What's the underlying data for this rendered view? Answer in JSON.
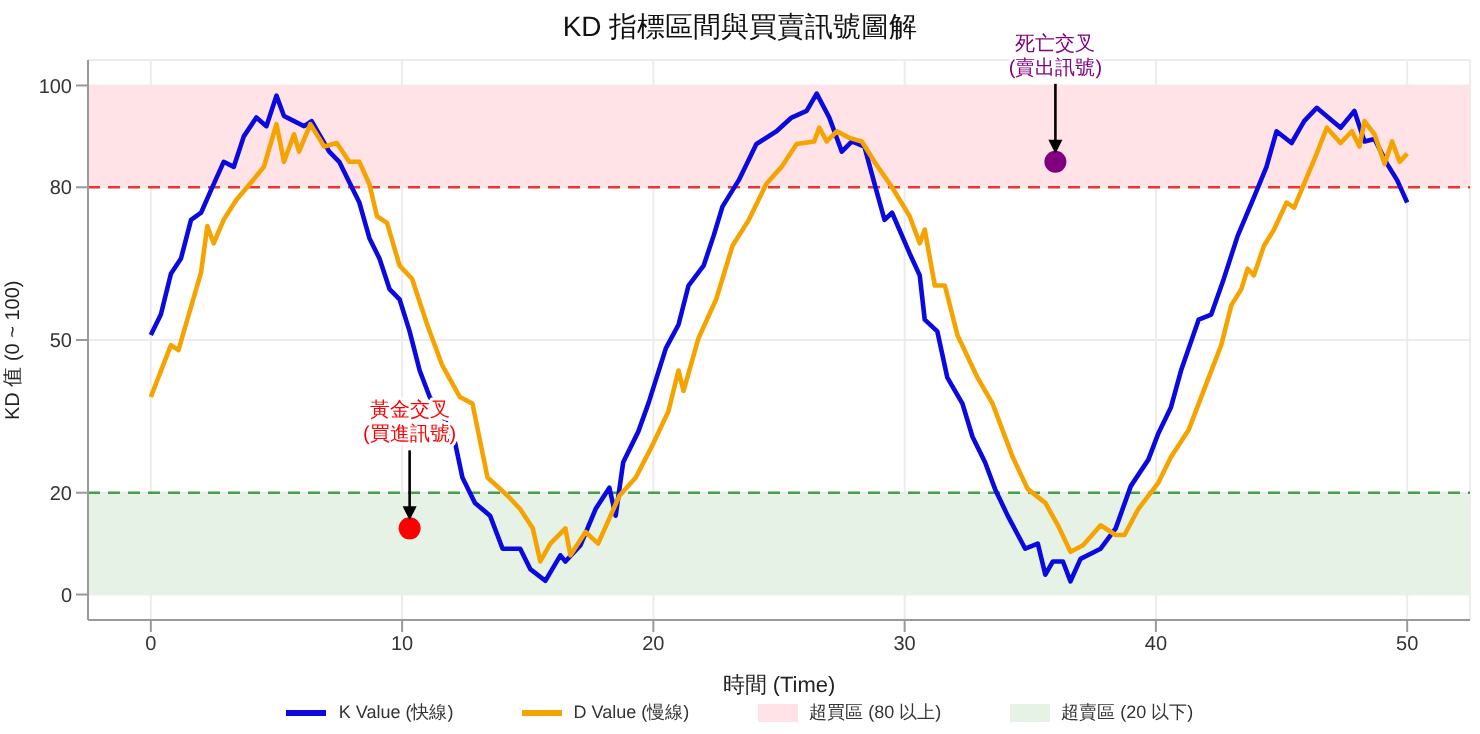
{
  "chart_data": {
    "type": "line",
    "title": "KD 指標區間與買賣訊號圖解",
    "xlabel": "時間 (Time)",
    "ylabel": "KD 值 (0 ~ 100)",
    "xlim": [
      -2.5,
      52.5
    ],
    "xticks": [
      0,
      10,
      20,
      30,
      40,
      50
    ],
    "ylim": [
      -5,
      105
    ],
    "yticks": [
      0,
      20,
      50,
      80,
      100
    ],
    "grid": true,
    "legend": "bottom",
    "line_style": "solid",
    "marker": "none",
    "series": [
      {
        "name": "K Value (快線)",
        "color": "#0a0ae0",
        "x": [
          0,
          0.4,
          0.8,
          1.2,
          1.6,
          2,
          2.4,
          2.9,
          3.3,
          3.7,
          4.2,
          4.6,
          5,
          5.3,
          5.7,
          6.1,
          6.4,
          6.75,
          7.1,
          7.5,
          7.9,
          8.3,
          8.7,
          9.1,
          9.5,
          9.9,
          10.3,
          10.7,
          11.1,
          11.6,
          12.1,
          12.4,
          12.9,
          13.5,
          14,
          14.7,
          15.1,
          15.7,
          16.3,
          16.5,
          17.1,
          17.7,
          18.25,
          18.5,
          18.8,
          19.4,
          19.8,
          20.5,
          21,
          21.4,
          22,
          22.4,
          22.75,
          23.4,
          24.1,
          24.9,
          25.5,
          26.1,
          26.5,
          27,
          27.5,
          27.9,
          28.4,
          28.8,
          29.2,
          29.5,
          30.2,
          30.6,
          30.8,
          31.3,
          31.7,
          32.3,
          32.7,
          33.2,
          33.6,
          34.1,
          34.8,
          35.3,
          35.6,
          35.9,
          36.3,
          36.6,
          37,
          37.8,
          38.4,
          39,
          39.7,
          40.1,
          40.6,
          41,
          41.7,
          42.2,
          42.7,
          43.25,
          43.9,
          44.4,
          44.8,
          45.4,
          45.9,
          46.4,
          47.35,
          47.9,
          48.3,
          48.7,
          49.2,
          49.6,
          50
        ],
        "values": [
          51,
          55,
          63,
          66,
          73.6,
          75,
          79.5,
          85,
          84,
          90,
          93.7,
          92,
          98,
          94,
          93,
          92,
          93,
          90,
          87,
          85,
          81,
          77,
          70,
          66,
          60,
          58,
          51.7,
          44,
          38.8,
          35.5,
          30,
          23,
          18,
          15.5,
          9,
          9,
          5,
          2.7,
          7.7,
          6.5,
          9.7,
          16.8,
          21,
          15.5,
          26,
          32,
          37.5,
          48.4,
          53,
          60.7,
          64.6,
          70.5,
          76.2,
          81.4,
          88.5,
          91,
          93.7,
          95,
          98.4,
          93.7,
          87,
          89,
          88,
          80.7,
          73.6,
          75,
          67,
          62.7,
          54,
          51.7,
          42.6,
          37.5,
          31,
          26,
          20.7,
          15.5,
          9,
          10,
          3.9,
          6.5,
          6.5,
          2.6,
          7,
          9,
          13,
          21.3,
          26.5,
          31.7,
          36.8,
          44,
          54,
          55,
          62,
          70.4,
          78,
          84,
          91,
          88.7,
          93,
          95.6,
          91.7,
          95,
          89,
          89.5,
          84.6,
          81.4,
          77
        ]
      },
      {
        "name": "D Value (慢線)",
        "color": "#f5a300",
        "x": [
          0,
          0.8,
          1.1,
          2,
          2.25,
          2.5,
          2.9,
          3.4,
          4,
          4.5,
          5,
          5.3,
          5.7,
          5.9,
          6.35,
          6.9,
          7.4,
          7.9,
          8.3,
          8.7,
          9,
          9.4,
          9.9,
          10.4,
          11,
          11.6,
          12.3,
          12.8,
          13.4,
          14.2,
          14.7,
          15.2,
          15.5,
          15.9,
          16.5,
          16.7,
          17.3,
          17.8,
          18.65,
          19.3,
          20,
          20.6,
          21,
          21.2,
          21.8,
          22.5,
          23.15,
          23.8,
          24.5,
          25.1,
          25.7,
          26.4,
          26.6,
          26.9,
          27.3,
          27.8,
          28.3,
          28.8,
          29.5,
          30.2,
          30.6,
          30.8,
          31.2,
          31.6,
          32.1,
          32.9,
          33.5,
          34.3,
          34.9,
          35.6,
          36.1,
          36.6,
          37.1,
          37.8,
          38.4,
          38.75,
          39.3,
          40.1,
          40.6,
          41.3,
          42.1,
          42.6,
          43,
          43.4,
          43.65,
          43.9,
          44.3,
          44.7,
          45.2,
          45.5,
          45.9,
          46.4,
          46.8,
          47.35,
          47.8,
          48.1,
          48.3,
          48.7,
          49.1,
          49.4,
          49.7,
          50
        ],
        "values": [
          38.8,
          49,
          48,
          63.3,
          72.4,
          69,
          73.6,
          77.5,
          81,
          84,
          92.4,
          85,
          90.4,
          87,
          92.4,
          88,
          88.7,
          85,
          85,
          80.6,
          74.3,
          73,
          64.6,
          62,
          53,
          45,
          38.8,
          37.5,
          23,
          19.4,
          16.8,
          13,
          6.5,
          10,
          13,
          7.7,
          12.3,
          10,
          19.4,
          23,
          29.7,
          36,
          44,
          40,
          50.4,
          58,
          68.5,
          73.6,
          80.7,
          84,
          88.5,
          89,
          91.7,
          89,
          91,
          89.7,
          89,
          85,
          80,
          74.3,
          69,
          71.7,
          60.7,
          60.7,
          51,
          42.6,
          37.5,
          27,
          20.7,
          18,
          13.6,
          8.4,
          9.7,
          13.6,
          11.7,
          11.7,
          16.8,
          22,
          27,
          32.3,
          42.6,
          49,
          56.8,
          60,
          64,
          62.7,
          68.5,
          71.7,
          77,
          76,
          80.7,
          86.6,
          91.7,
          88.7,
          91,
          88,
          93,
          90.4,
          84.6,
          89,
          85,
          86.6
        ]
      },
      {
        "type": "scatter",
        "marker": "circle",
        "color": "#ff0000",
        "x": [
          10.3
        ],
        "values": [
          13
        ]
      },
      {
        "type": "scatter",
        "marker": "circle",
        "color": "#800080",
        "x": [
          36
        ],
        "values": [
          85
        ]
      }
    ],
    "ref_lines": [
      {
        "axis": "y",
        "value": 80,
        "color": "#e53935",
        "line_style": "dashed"
      },
      {
        "axis": "y",
        "value": 20,
        "color": "#43a047",
        "line_style": "dashed"
      }
    ],
    "bands": [
      {
        "axis": "y",
        "from": 80,
        "to": 100,
        "label": "超買區 (80 以上)",
        "color": "#ffe3e6"
      },
      {
        "axis": "y",
        "from": 0,
        "to": 20,
        "label": "超賣區 (20 以下)",
        "color": "#e6f2e6"
      }
    ],
    "annotations": [
      {
        "text": "黃金交叉\n(買進訊號)",
        "x": 10.3,
        "y": 13
      },
      {
        "text": "死亡交叉\n(賣出訊號)",
        "x": 36,
        "y": 85
      }
    ]
  }
}
